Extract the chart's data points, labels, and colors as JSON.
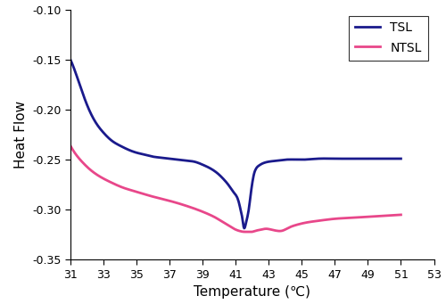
{
  "title": "",
  "xlabel": "Temperature (℃)",
  "ylabel": "Heat Flow",
  "xlim": [
    31,
    53
  ],
  "ylim": [
    -0.35,
    -0.1
  ],
  "xticks": [
    31,
    33,
    35,
    37,
    39,
    41,
    43,
    45,
    47,
    49,
    51,
    53
  ],
  "yticks": [
    -0.35,
    -0.3,
    -0.25,
    -0.2,
    -0.15,
    -0.1
  ],
  "tsl_color": "#1a1a8c",
  "ntsl_color": "#e8478a",
  "linewidth": 2.0,
  "background_color": "#ffffff",
  "legend_labels": [
    "TSL",
    "NTSL"
  ],
  "legend_fontsize": 10,
  "figsize": [
    5.0,
    3.41
  ],
  "dpi": 100,
  "tsl_x": [
    31.0,
    31.2,
    31.5,
    32.0,
    32.5,
    33.0,
    33.5,
    34.0,
    34.5,
    35.0,
    35.5,
    36.0,
    36.5,
    37.0,
    37.5,
    38.0,
    38.5,
    39.0,
    39.5,
    40.0,
    40.3,
    40.6,
    40.9,
    41.1,
    41.2,
    41.3,
    41.4,
    41.45,
    41.5,
    41.55,
    41.6,
    41.7,
    41.8,
    41.9,
    42.0,
    42.1,
    42.2,
    42.4,
    42.6,
    43.0,
    43.5,
    44.0,
    45.0,
    46.0,
    47.0,
    48.0,
    49.0,
    50.0,
    51.0
  ],
  "tsl_y": [
    -0.15,
    -0.158,
    -0.172,
    -0.195,
    -0.212,
    -0.223,
    -0.231,
    -0.236,
    -0.24,
    -0.243,
    -0.245,
    -0.247,
    -0.248,
    -0.249,
    -0.25,
    -0.251,
    -0.252,
    -0.255,
    -0.259,
    -0.265,
    -0.27,
    -0.276,
    -0.283,
    -0.288,
    -0.293,
    -0.3,
    -0.308,
    -0.314,
    -0.318,
    -0.318,
    -0.315,
    -0.308,
    -0.299,
    -0.286,
    -0.274,
    -0.265,
    -0.26,
    -0.256,
    -0.254,
    -0.252,
    -0.251,
    -0.25,
    -0.25,
    -0.249,
    -0.249,
    -0.249,
    -0.249,
    -0.249,
    -0.249
  ],
  "ntsl_x": [
    31.0,
    31.3,
    31.7,
    32.2,
    32.8,
    33.5,
    34.2,
    35.0,
    35.8,
    36.5,
    37.2,
    38.0,
    38.7,
    39.3,
    39.8,
    40.2,
    40.6,
    40.9,
    41.2,
    41.5,
    41.8,
    42.0,
    42.2,
    42.5,
    42.8,
    43.2,
    43.5,
    43.8,
    44.2,
    44.7,
    45.2,
    46.0,
    47.0,
    48.0,
    49.0,
    50.0,
    51.0
  ],
  "ntsl_y": [
    -0.236,
    -0.244,
    -0.252,
    -0.26,
    -0.267,
    -0.273,
    -0.278,
    -0.282,
    -0.286,
    -0.289,
    -0.292,
    -0.296,
    -0.3,
    -0.304,
    -0.308,
    -0.312,
    -0.316,
    -0.319,
    -0.321,
    -0.322,
    -0.322,
    -0.322,
    -0.321,
    -0.32,
    -0.319,
    -0.32,
    -0.321,
    -0.321,
    -0.318,
    -0.315,
    -0.313,
    -0.311,
    -0.309,
    -0.308,
    -0.307,
    -0.306,
    -0.305
  ]
}
